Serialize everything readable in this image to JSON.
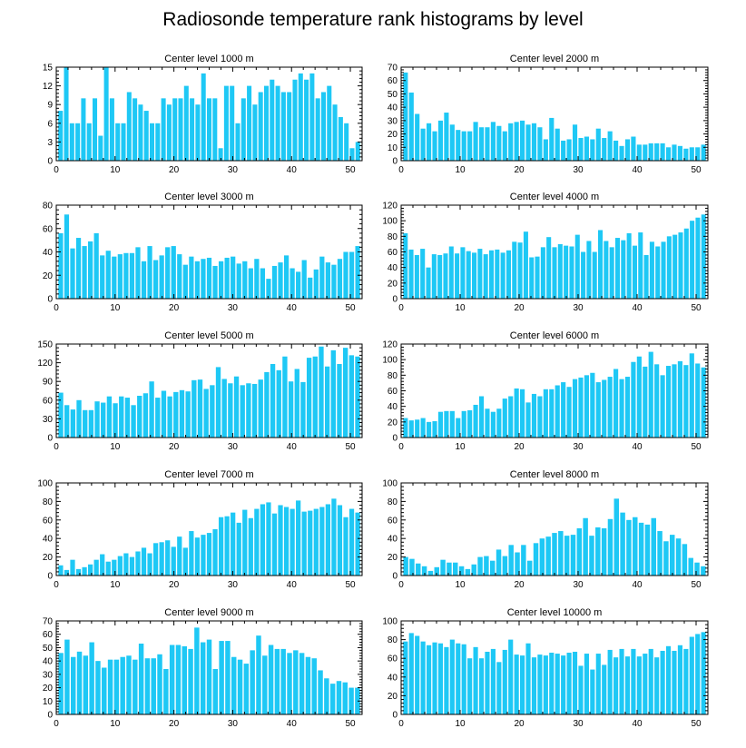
{
  "page_title": "Radiosonde temperature rank histograms by level",
  "bar_color": "#1ec8f5",
  "chart_data": [
    {
      "type": "bar",
      "title": "Center level 1000 m",
      "xlim": [
        0,
        52
      ],
      "ylim": [
        0,
        15
      ],
      "xticks": [
        0,
        10,
        20,
        30,
        40,
        50
      ],
      "yticks": [
        0,
        3,
        6,
        9,
        12,
        15
      ],
      "values": [
        8,
        15,
        6,
        6,
        10,
        6,
        10,
        4,
        15,
        10,
        6,
        6,
        11,
        10,
        9,
        8,
        6,
        6,
        10,
        9,
        10,
        10,
        12,
        10,
        9,
        14,
        10,
        10,
        2,
        12,
        12,
        6,
        10,
        12,
        9,
        11,
        12,
        13,
        12,
        11,
        11,
        13,
        14,
        13,
        14,
        10,
        11,
        12,
        9,
        7,
        6,
        2,
        3
      ]
    },
    {
      "type": "bar",
      "title": "Center level 2000 m",
      "xlim": [
        0,
        52
      ],
      "ylim": [
        0,
        70
      ],
      "xticks": [
        0,
        10,
        20,
        30,
        40,
        50
      ],
      "yticks": [
        0,
        10,
        20,
        30,
        40,
        50,
        60,
        70
      ],
      "values": [
        66,
        51,
        35,
        24,
        28,
        22,
        30,
        36,
        27,
        23,
        22,
        22,
        29,
        25,
        25,
        29,
        26,
        22,
        28,
        29,
        30,
        27,
        28,
        25,
        16,
        32,
        24,
        15,
        16,
        27,
        17,
        18,
        16,
        24,
        17,
        22,
        15,
        11,
        16,
        18,
        12,
        12,
        13,
        13,
        13,
        10,
        12,
        11,
        9,
        10,
        10,
        12
      ]
    },
    {
      "type": "bar",
      "title": "Center level 3000 m",
      "xlim": [
        0,
        52
      ],
      "ylim": [
        0,
        80
      ],
      "xticks": [
        0,
        10,
        20,
        30,
        40,
        50
      ],
      "yticks": [
        0,
        20,
        40,
        60,
        80
      ],
      "values": [
        56,
        72,
        43,
        52,
        45,
        49,
        56,
        37,
        41,
        36,
        38,
        39,
        39,
        44,
        32,
        45,
        33,
        37,
        44,
        45,
        38,
        29,
        36,
        32,
        34,
        35,
        28,
        32,
        35,
        36,
        30,
        32,
        26,
        34,
        26,
        17,
        28,
        31,
        37,
        26,
        23,
        33,
        18,
        25,
        36,
        31,
        29,
        34,
        40,
        40,
        45
      ]
    },
    {
      "type": "bar",
      "title": "Center level 4000 m",
      "xlim": [
        0,
        52
      ],
      "ylim": [
        0,
        120
      ],
      "xticks": [
        0,
        10,
        20,
        30,
        40,
        50
      ],
      "yticks": [
        0,
        20,
        40,
        60,
        80,
        100,
        120
      ],
      "values": [
        84,
        63,
        56,
        64,
        40,
        57,
        56,
        58,
        67,
        58,
        66,
        61,
        59,
        64,
        57,
        62,
        63,
        59,
        62,
        73,
        72,
        86,
        53,
        54,
        66,
        79,
        66,
        70,
        68,
        67,
        82,
        60,
        74,
        60,
        88,
        74,
        66,
        78,
        75,
        84,
        68,
        85,
        56,
        73,
        67,
        73,
        80,
        82,
        85,
        90,
        100,
        104,
        108
      ]
    },
    {
      "type": "bar",
      "title": "Center level 5000 m",
      "xlim": [
        0,
        52
      ],
      "ylim": [
        0,
        150
      ],
      "xticks": [
        0,
        10,
        20,
        30,
        40,
        50
      ],
      "yticks": [
        0,
        30,
        60,
        90,
        120,
        150
      ],
      "values": [
        72,
        52,
        45,
        60,
        44,
        44,
        58,
        56,
        66,
        55,
        66,
        64,
        52,
        67,
        71,
        90,
        64,
        75,
        66,
        73,
        76,
        74,
        92,
        93,
        78,
        84,
        113,
        94,
        87,
        98,
        84,
        87,
        86,
        93,
        105,
        118,
        108,
        130,
        90,
        110,
        89,
        128,
        130,
        146,
        114,
        140,
        118,
        144,
        132,
        130
      ]
    },
    {
      "type": "bar",
      "title": "Center level 6000 m",
      "xlim": [
        0,
        52
      ],
      "ylim": [
        0,
        120
      ],
      "xticks": [
        0,
        10,
        20,
        30,
        40,
        50
      ],
      "yticks": [
        0,
        20,
        40,
        60,
        80,
        100,
        120
      ],
      "values": [
        25,
        22,
        23,
        25,
        20,
        21,
        33,
        34,
        34,
        25,
        34,
        35,
        42,
        53,
        37,
        33,
        37,
        50,
        53,
        63,
        62,
        45,
        56,
        53,
        62,
        62,
        67,
        71,
        65,
        75,
        77,
        80,
        83,
        71,
        74,
        78,
        88,
        75,
        78,
        97,
        104,
        91,
        110,
        94,
        80,
        92,
        94,
        98,
        93,
        108,
        95,
        90
      ]
    },
    {
      "type": "bar",
      "title": "Center level 7000 m",
      "xlim": [
        0,
        52
      ],
      "ylim": [
        0,
        100
      ],
      "xticks": [
        0,
        10,
        20,
        30,
        40,
        50
      ],
      "yticks": [
        0,
        20,
        40,
        60,
        80,
        100
      ],
      "values": [
        11,
        6,
        17,
        7,
        9,
        12,
        17,
        23,
        15,
        17,
        21,
        24,
        20,
        26,
        30,
        24,
        35,
        36,
        38,
        31,
        42,
        30,
        48,
        41,
        44,
        46,
        50,
        63,
        64,
        68,
        57,
        71,
        62,
        72,
        77,
        79,
        67,
        76,
        74,
        72,
        81,
        69,
        70,
        72,
        74,
        77,
        83,
        76,
        63,
        72,
        68
      ]
    },
    {
      "type": "bar",
      "title": "Center level 8000 m",
      "xlim": [
        0,
        52
      ],
      "ylim": [
        0,
        100
      ],
      "xticks": [
        0,
        10,
        20,
        30,
        40,
        50
      ],
      "yticks": [
        0,
        20,
        40,
        60,
        80,
        100
      ],
      "values": [
        20,
        18,
        13,
        10,
        5,
        9,
        17,
        14,
        14,
        10,
        7,
        12,
        20,
        21,
        16,
        28,
        21,
        33,
        25,
        33,
        16,
        35,
        40,
        42,
        46,
        48,
        43,
        44,
        51,
        62,
        43,
        52,
        51,
        61,
        83,
        68,
        60,
        63,
        57,
        55,
        62,
        48,
        37,
        44,
        40,
        34,
        19,
        14,
        10
      ]
    },
    {
      "type": "bar",
      "title": "Center level 9000 m",
      "xlim": [
        0,
        52
      ],
      "ylim": [
        0,
        70
      ],
      "xticks": [
        0,
        10,
        20,
        30,
        40,
        50
      ],
      "yticks": [
        0,
        10,
        20,
        30,
        40,
        50,
        60,
        70
      ],
      "values": [
        46,
        56,
        43,
        47,
        44,
        54,
        40,
        35,
        41,
        41,
        43,
        44,
        41,
        53,
        42,
        42,
        45,
        34,
        52,
        52,
        51,
        49,
        65,
        54,
        56,
        34,
        55,
        55,
        43,
        41,
        38,
        48,
        59,
        44,
        52,
        49,
        49,
        46,
        48,
        46,
        43,
        42,
        33,
        27,
        23,
        25,
        24,
        20,
        20
      ]
    },
    {
      "type": "bar",
      "title": "Center level 10000 m",
      "xlim": [
        0,
        52
      ],
      "ylim": [
        0,
        100
      ],
      "xticks": [
        0,
        10,
        20,
        30,
        40,
        50
      ],
      "yticks": [
        0,
        20,
        40,
        60,
        80,
        100
      ],
      "values": [
        78,
        87,
        84,
        78,
        74,
        77,
        76,
        72,
        80,
        76,
        75,
        60,
        72,
        60,
        67,
        70,
        56,
        69,
        80,
        64,
        63,
        76,
        61,
        64,
        63,
        66,
        65,
        63,
        66,
        67,
        52,
        65,
        48,
        65,
        53,
        69,
        61,
        70,
        62,
        70,
        62,
        65,
        70,
        61,
        68,
        73,
        68,
        74,
        70,
        83,
        86,
        88
      ]
    }
  ]
}
